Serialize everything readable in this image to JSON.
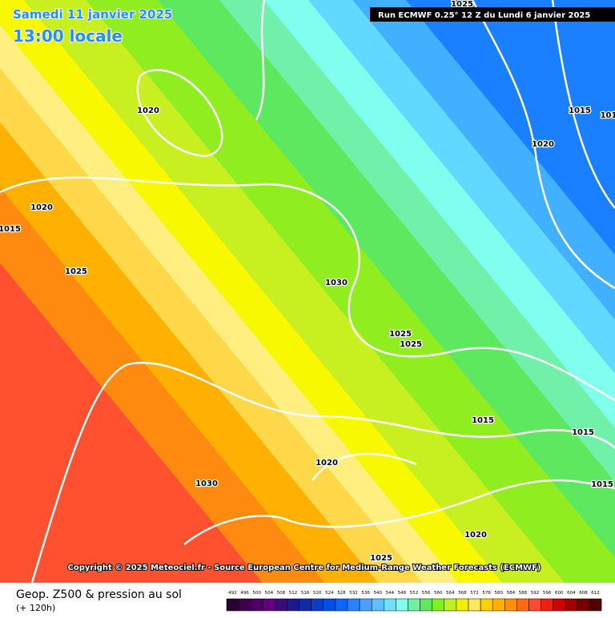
{
  "header": {
    "date": "Samedi 11 janvier 2025",
    "time": "13:00 locale",
    "run": "Run ECMWF 0.25° 12 Z du Lundi 6 janvier 2025"
  },
  "isobar_labels": [
    "1025",
    "1020",
    "1020",
    "1015",
    "1025",
    "1030",
    "1025",
    "1025",
    "1015",
    "101",
    "1020",
    "1015",
    "1015",
    "1020",
    "1030",
    "1015",
    "1020",
    "1025"
  ],
  "copyright": "Copyright © 2025 Meteociel.fr - Source European Centre for Medium-Range Weather Forecasts (ECMWF)",
  "footer": {
    "title": "Geop. Z500 & pression au sol",
    "lead": "(+ 120h)"
  },
  "scale": [
    {
      "label": 492,
      "color": "#2a0033"
    },
    {
      "label": 496,
      "color": "#3d0050"
    },
    {
      "label": 500,
      "color": "#4f0066"
    },
    {
      "label": 504,
      "color": "#62007d"
    },
    {
      "label": 508,
      "color": "#3a0a7a"
    },
    {
      "label": 512,
      "color": "#1c1a8c"
    },
    {
      "label": 516,
      "color": "#102aa8"
    },
    {
      "label": 520,
      "color": "#0a3cc8"
    },
    {
      "label": 524,
      "color": "#0050e6"
    },
    {
      "label": 528,
      "color": "#0a66ff"
    },
    {
      "label": 532,
      "color": "#2a82ff"
    },
    {
      "label": 536,
      "color": "#4aa0ff"
    },
    {
      "label": 540,
      "color": "#60c0ff"
    },
    {
      "label": 544,
      "color": "#70e0ff"
    },
    {
      "label": 548,
      "color": "#80ffee"
    },
    {
      "label": 552,
      "color": "#70f0a0"
    },
    {
      "label": 556,
      "color": "#60e860"
    },
    {
      "label": 560,
      "color": "#80f020"
    },
    {
      "label": 564,
      "color": "#c0f020"
    },
    {
      "label": 568,
      "color": "#f0f000"
    },
    {
      "label": 572,
      "color": "#ffe860"
    },
    {
      "label": 576,
      "color": "#ffd000"
    },
    {
      "label": 580,
      "color": "#ffb000"
    },
    {
      "label": 584,
      "color": "#ff9000"
    },
    {
      "label": 588,
      "color": "#ff6a10"
    },
    {
      "label": 592,
      "color": "#ff4a30"
    },
    {
      "label": 596,
      "color": "#f02010"
    },
    {
      "label": 600,
      "color": "#d00000"
    },
    {
      "label": 604,
      "color": "#a00000"
    },
    {
      "label": 608,
      "color": "#780000"
    },
    {
      "label": 612,
      "color": "#500000"
    }
  ]
}
